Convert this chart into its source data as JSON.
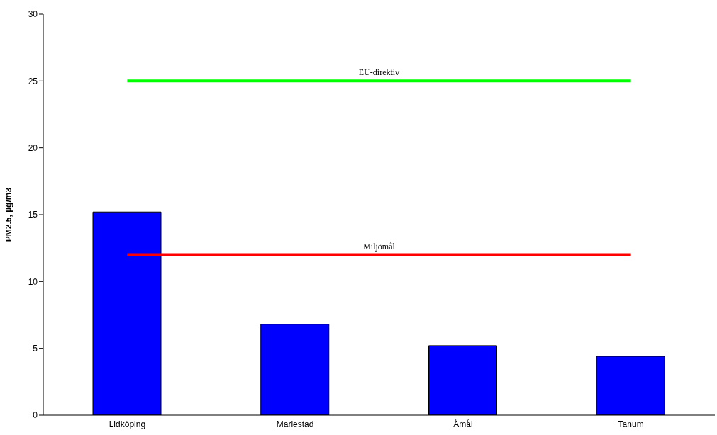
{
  "chart_data": {
    "type": "bar",
    "ylabel": "PM2.5, µg/m3",
    "categories": [
      "Lidköping",
      "Mariestad",
      "Åmål",
      "Tanum"
    ],
    "values": [
      15.2,
      6.8,
      5.2,
      4.4
    ],
    "color": "#0000ff",
    "ylim": [
      0,
      30
    ],
    "yticks": [
      0,
      5,
      10,
      15,
      20,
      25,
      30
    ],
    "ref_lines": [
      {
        "axis": "y",
        "value": 25,
        "label": "EU-direktiv",
        "color": "#00ff00"
      },
      {
        "axis": "y",
        "value": 12,
        "label": "Miljömål",
        "color": "#ff0000"
      }
    ]
  }
}
